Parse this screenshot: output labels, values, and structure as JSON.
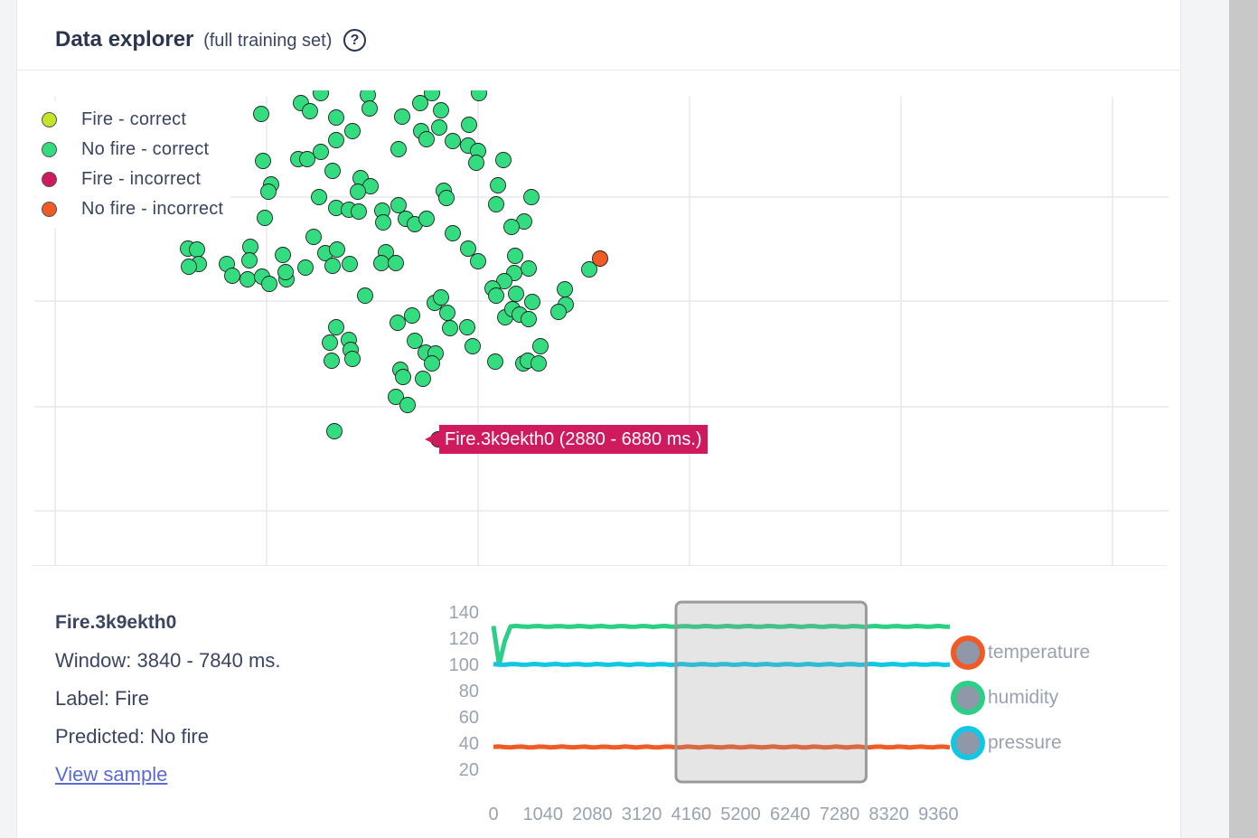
{
  "header": {
    "title": "Data explorer",
    "subtitle": "(full training set)",
    "help_icon": "?"
  },
  "scatter": {
    "legend": [
      {
        "label": "Fire - correct",
        "color": "#c2e52a"
      },
      {
        "label": "No fire - correct",
        "color": "#33dd7f"
      },
      {
        "label": "Fire - incorrect",
        "color": "#cf1b5e"
      },
      {
        "label": "No fire - incorrect",
        "color": "#ef5a25"
      }
    ],
    "tooltip": "Fire.3k9ekth0 (2880 - 6880 ms.)"
  },
  "sample": {
    "name": "Fire.3k9ekth0",
    "window": "Window: 3840 - 7840 ms.",
    "label": "Label: Fire",
    "predicted": "Predicted: No fire",
    "link": "View sample"
  },
  "chart_data": {
    "type": "line",
    "x_ticks": [
      "0",
      "1040",
      "2080",
      "3120",
      "4160",
      "5200",
      "6240",
      "7280",
      "8320",
      "9360"
    ],
    "y_ticks": [
      "20",
      "40",
      "60",
      "80",
      "100",
      "120",
      "140"
    ],
    "xlim": [
      0,
      9600
    ],
    "ylim": [
      20,
      140
    ],
    "series": [
      {
        "name": "temperature",
        "color": "#ef5a25",
        "approx_value": 37
      },
      {
        "name": "humidity",
        "color": "#2ccf85",
        "approx_value": 129
      },
      {
        "name": "pressure",
        "color": "#10c7e4",
        "approx_value": 100
      }
    ],
    "selected_window_ms": [
      3840,
      7840
    ]
  }
}
